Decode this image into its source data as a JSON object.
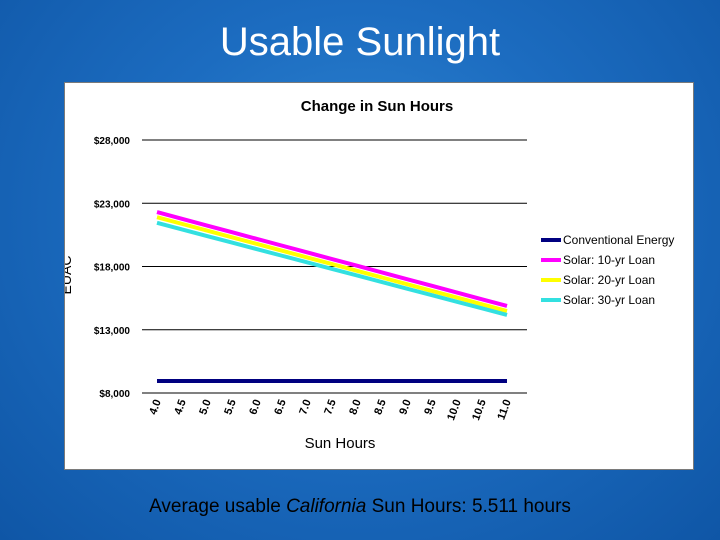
{
  "slide": {
    "title": "Usable Sunlight",
    "footer_prefix": "Average usable ",
    "footer_italic": "California",
    "footer_suffix": " Sun Hours: 5.511 hours"
  },
  "chart_data": {
    "type": "line",
    "title": "Change in Sun Hours",
    "xlabel": "Sun Hours",
    "ylabel": "EUAC",
    "x": [
      "4.0",
      "4.5",
      "5.0",
      "5.5",
      "6.0",
      "6.5",
      "7.0",
      "7.5",
      "8.0",
      "8.5",
      "9.0",
      "9.5",
      "10.0",
      "10.5",
      "11.0"
    ],
    "yticks": [
      8000,
      13000,
      18000,
      23000,
      28000
    ],
    "ytick_labels": [
      "$8,000",
      "$13,000",
      "$18,000",
      "$23,000",
      "$28,000"
    ],
    "ylim": [
      8000,
      28000
    ],
    "legend_position": "right",
    "series": [
      {
        "name": "Conventional Energy",
        "color": "#000080",
        "values": [
          8950,
          8950,
          8950,
          8950,
          8950,
          8950,
          8950,
          8950,
          8950,
          8950,
          8950,
          8950,
          8950,
          8950,
          8950
        ]
      },
      {
        "name": "Solar: 10-yr Loan",
        "color": "#ff00ff",
        "values": [
          22300,
          21770,
          21240,
          20710,
          20180,
          19650,
          19120,
          18590,
          18060,
          17530,
          17000,
          16470,
          15940,
          15410,
          14880
        ]
      },
      {
        "name": "Solar: 20-yr Loan",
        "color": "#ffff00",
        "values": [
          21900,
          21370,
          20840,
          20310,
          19780,
          19250,
          18720,
          18190,
          17660,
          17130,
          16600,
          16070,
          15540,
          15010,
          14480
        ]
      },
      {
        "name": "Solar: 30-yr Loan",
        "color": "#33e0e0",
        "values": [
          21450,
          20930,
          20410,
          19890,
          19370,
          18850,
          18330,
          17810,
          17290,
          16770,
          16250,
          15730,
          15210,
          14690,
          14170
        ]
      }
    ]
  }
}
